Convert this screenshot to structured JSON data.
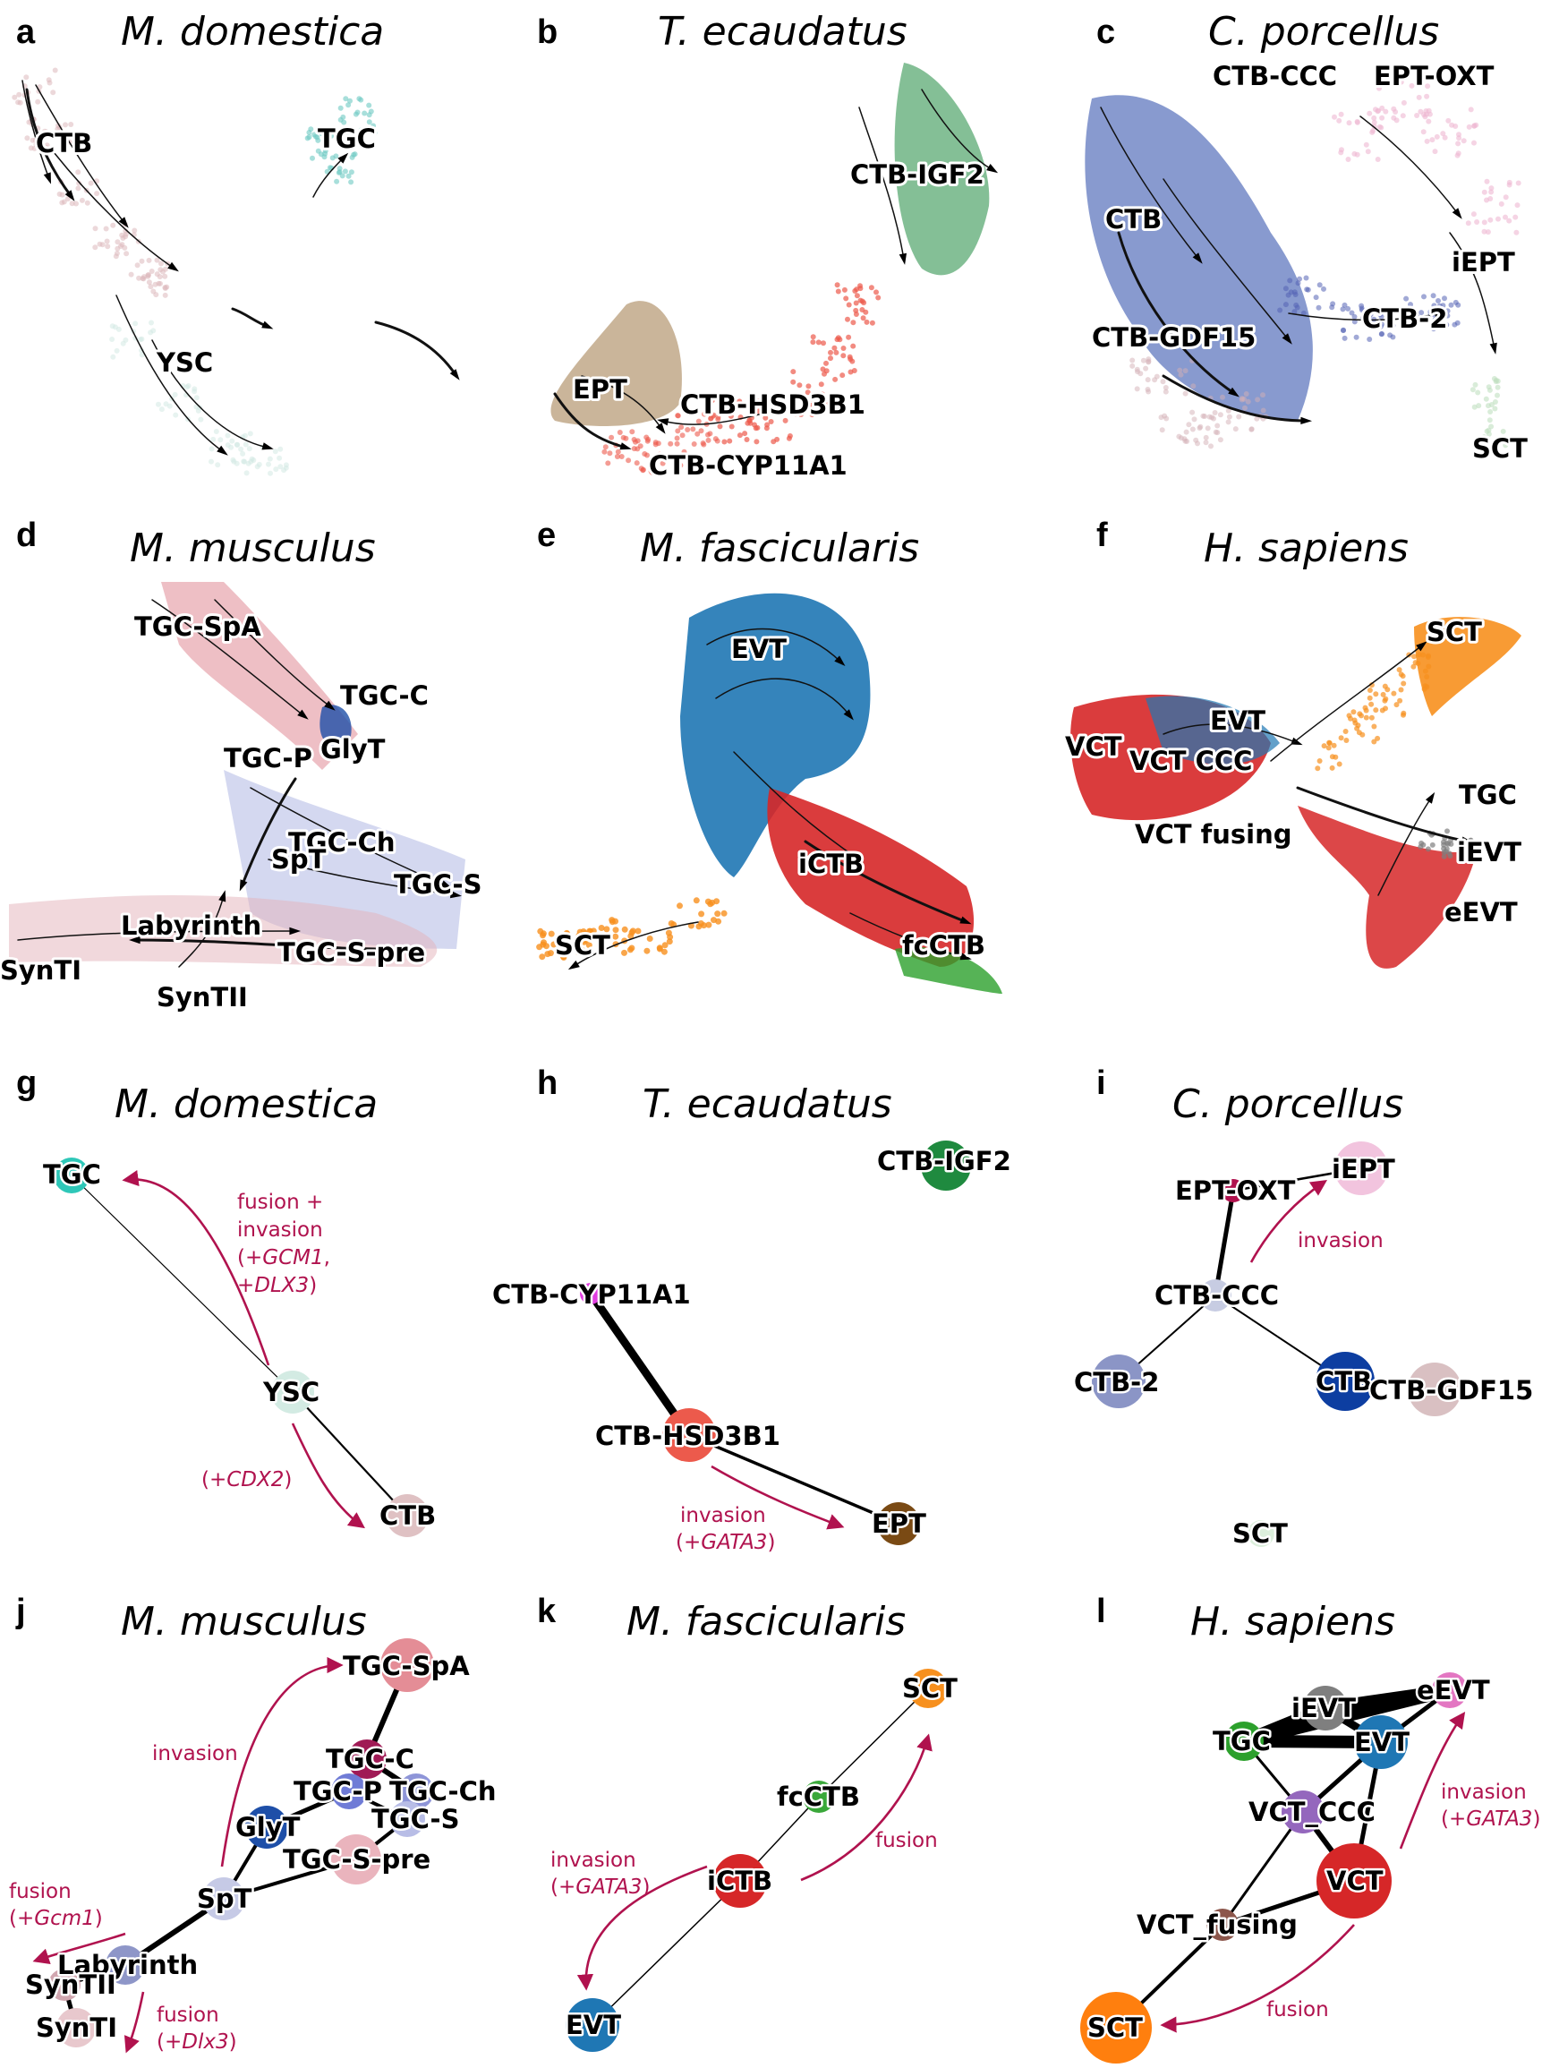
{
  "colors": {
    "annotation": "#b0124e",
    "edge": "#000000"
  },
  "panels": [
    {
      "id": "a",
      "letter": "a",
      "species": "M. domestica",
      "type": "umap",
      "labels": [
        "CTB",
        "TGC",
        "YSC"
      ]
    },
    {
      "id": "b",
      "letter": "b",
      "species": "T. ecaudatus",
      "type": "umap",
      "labels": [
        "CTB-IGF2",
        "EPT",
        "CTB-HSD3B1",
        "CTB-CYP11A1"
      ]
    },
    {
      "id": "c",
      "letter": "c",
      "species": "C. porcellus",
      "type": "umap",
      "labels": [
        "CTB-CCC",
        "EPT-OXT",
        "CTB",
        "iEPT",
        "CTB-GDF15",
        "CTB-2",
        "SCT"
      ]
    },
    {
      "id": "d",
      "letter": "d",
      "species": "M. musculus",
      "type": "umap",
      "labels": [
        "TGC-SpA",
        "TGC-C",
        "TGC-P",
        "GlyT",
        "TGC-Ch",
        "SpT",
        "TGC-S",
        "Labyrinth",
        "TGC-S-pre",
        "SynTI",
        "SynTII"
      ]
    },
    {
      "id": "e",
      "letter": "e",
      "species": "M. fascicularis",
      "type": "umap",
      "labels": [
        "EVT",
        "iCTB",
        "SCT",
        "fcCTB"
      ]
    },
    {
      "id": "f",
      "letter": "f",
      "species": "H. sapiens",
      "type": "umap",
      "labels": [
        "SCT",
        "EVT",
        "VCT",
        "VCT CCC",
        "TGC",
        "VCT fusing",
        "iEVT",
        "eEVT"
      ]
    },
    {
      "id": "g",
      "letter": "g",
      "species": "M. domestica",
      "type": "graph",
      "nodes": [
        {
          "id": "TGC",
          "label": "TGC",
          "color": "#2ec7b8"
        },
        {
          "id": "YSC",
          "label": "YSC",
          "color": "#d3ebe3"
        },
        {
          "id": "CTB",
          "label": "CTB",
          "color": "#dfc1c3"
        }
      ],
      "edges": [
        [
          "TGC",
          "YSC"
        ],
        [
          "YSC",
          "CTB"
        ]
      ],
      "annotations": [
        {
          "id": "g1",
          "lines": [
            "fusion +",
            "invasion",
            "(+GCM1,",
            "+DLX3)"
          ]
        },
        {
          "id": "g2",
          "lines": [
            "(+CDX2)"
          ]
        }
      ]
    },
    {
      "id": "h",
      "letter": "h",
      "species": "T. ecaudatus",
      "type": "graph",
      "nodes": [
        {
          "id": "CTB-IGF2",
          "label": "CTB-IGF2",
          "color": "#1f8a3f"
        },
        {
          "id": "CTB-CYP11A1",
          "label": "CTB-CYP11A1",
          "color": "#e03ee0"
        },
        {
          "id": "CTB-HSD3B1",
          "label": "CTB-HSD3B1",
          "color": "#ec5a4c"
        },
        {
          "id": "EPT",
          "label": "EPT",
          "color": "#7a4a14"
        }
      ],
      "edges": [
        [
          "CTB-CYP11A1",
          "CTB-HSD3B1"
        ],
        [
          "CTB-HSD3B1",
          "EPT"
        ]
      ],
      "annotations": [
        {
          "id": "h1",
          "lines": [
            "invasion",
            "(+GATA3)"
          ]
        }
      ]
    },
    {
      "id": "i",
      "letter": "i",
      "species": "C. porcellus",
      "type": "graph",
      "nodes": [
        {
          "id": "EPT-OXT",
          "label": "EPT-OXT",
          "color": "#b0124e"
        },
        {
          "id": "iEPT",
          "label": "iEPT",
          "color": "#f2c4de"
        },
        {
          "id": "CTB-CCC",
          "label": "CTB-CCC",
          "color": "#c7cce2"
        },
        {
          "id": "CTB-2",
          "label": "CTB-2",
          "color": "#8b95c6"
        },
        {
          "id": "CTB",
          "label": "CTB",
          "color": "#0d3ea1"
        },
        {
          "id": "CTB-GDF15",
          "label": "CTB-GDF15",
          "color": "#d9c0c2"
        },
        {
          "id": "SCT",
          "label": "SCT",
          "color": "#dcefdc"
        }
      ],
      "edges": [
        [
          "EPT-OXT",
          "iEPT"
        ],
        [
          "EPT-OXT",
          "CTB-CCC"
        ],
        [
          "CTB-CCC",
          "CTB-2"
        ],
        [
          "CTB-CCC",
          "CTB"
        ]
      ],
      "annotations": [
        {
          "id": "i1",
          "lines": [
            "invasion"
          ]
        }
      ]
    },
    {
      "id": "j",
      "letter": "j",
      "species": "M. musculus",
      "type": "graph",
      "nodes": [
        {
          "id": "TGC-SpA",
          "label": "TGC-SpA",
          "color": "#e48d96"
        },
        {
          "id": "TGC-C",
          "label": "TGC-C",
          "color": "#a01a55"
        },
        {
          "id": "TGC-P",
          "label": "TGC-P",
          "color": "#6f7bd6"
        },
        {
          "id": "TGC-Ch",
          "label": "TGC-Ch",
          "color": "#8e95d8"
        },
        {
          "id": "TGC-S",
          "label": "TGC-S",
          "color": "#b8bde6"
        },
        {
          "id": "GlyT",
          "label": "GlyT",
          "color": "#1e4fa8"
        },
        {
          "id": "TGC-S-pre",
          "label": "TGC-S-pre",
          "color": "#eab4bd"
        },
        {
          "id": "SpT",
          "label": "SpT",
          "color": "#c6cae6"
        },
        {
          "id": "Labyrinth",
          "label": "Labyrinth",
          "color": "#8e96c8"
        },
        {
          "id": "SynTII",
          "label": "SynTII",
          "color": "#d1a7b0"
        },
        {
          "id": "SynTI",
          "label": "SynTI",
          "color": "#e8c8cd"
        }
      ],
      "edges": [
        [
          "TGC-SpA",
          "TGC-C"
        ],
        [
          "TGC-C",
          "TGC-P"
        ],
        [
          "TGC-C",
          "TGC-Ch"
        ],
        [
          "TGC-P",
          "GlyT"
        ],
        [
          "TGC-P",
          "TGC-S"
        ],
        [
          "TGC-Ch",
          "TGC-S"
        ],
        [
          "TGC-S",
          "TGC-S-pre"
        ],
        [
          "GlyT",
          "SpT"
        ],
        [
          "SpT",
          "TGC-S-pre"
        ],
        [
          "SpT",
          "Labyrinth"
        ],
        [
          "Labyrinth",
          "SynTII"
        ],
        [
          "SynTII",
          "SynTI"
        ]
      ],
      "annotations": [
        {
          "id": "j1",
          "lines": [
            "invasion"
          ]
        },
        {
          "id": "j2",
          "lines": [
            "fusion",
            "(+Gcm1)"
          ]
        },
        {
          "id": "j3",
          "lines": [
            "fusion",
            "(+Dlx3)"
          ]
        }
      ]
    },
    {
      "id": "k",
      "letter": "k",
      "species": "M. fascicularis",
      "type": "graph",
      "nodes": [
        {
          "id": "SCT",
          "label": "SCT",
          "color": "#f7901e"
        },
        {
          "id": "fcCTB",
          "label": "fcCTB",
          "color": "#3aa83a"
        },
        {
          "id": "iCTB",
          "label": "iCTB",
          "color": "#d62728"
        },
        {
          "id": "EVT",
          "label": "EVT",
          "color": "#1f77b4"
        }
      ],
      "edges": [
        [
          "SCT",
          "fcCTB"
        ],
        [
          "fcCTB",
          "iCTB"
        ],
        [
          "iCTB",
          "EVT"
        ]
      ],
      "annotations": [
        {
          "id": "k1",
          "lines": [
            "invasion",
            "(+GATA3)"
          ]
        },
        {
          "id": "k2",
          "lines": [
            "fusion"
          ]
        }
      ]
    },
    {
      "id": "l",
      "letter": "l",
      "species": "H. sapiens",
      "type": "graph",
      "nodes": [
        {
          "id": "iEVT",
          "label": "iEVT",
          "color": "#7f7f7f"
        },
        {
          "id": "eEVT",
          "label": "eEVT",
          "color": "#e377c2"
        },
        {
          "id": "TGC",
          "label": "TGC",
          "color": "#2ca02c"
        },
        {
          "id": "EVT",
          "label": "EVT",
          "color": "#1f77b4"
        },
        {
          "id": "VCT_CCC",
          "label": "VCT_CCC",
          "color": "#9467bd"
        },
        {
          "id": "VCT",
          "label": "VCT",
          "color": "#d62728"
        },
        {
          "id": "VCT_fusing",
          "label": "VCT_fusing",
          "color": "#8c564b"
        },
        {
          "id": "SCT",
          "label": "SCT",
          "color": "#ff7f0e"
        }
      ],
      "edges": [
        [
          "iEVT",
          "eEVT"
        ],
        [
          "iEVT",
          "TGC"
        ],
        [
          "iEVT",
          "EVT"
        ],
        [
          "TGC",
          "eEVT"
        ],
        [
          "TGC",
          "EVT"
        ],
        [
          "EVT",
          "eEVT"
        ],
        [
          "TGC",
          "VCT_CCC"
        ],
        [
          "EVT",
          "VCT_CCC"
        ],
        [
          "VCT_CCC",
          "VCT"
        ],
        [
          "VCT_CCC",
          "VCT_fusing"
        ],
        [
          "VCT",
          "VCT_fusing"
        ],
        [
          "VCT",
          "EVT"
        ],
        [
          "VCT_fusing",
          "SCT"
        ]
      ],
      "annotations": [
        {
          "id": "l1",
          "lines": [
            "invasion",
            "(+GATA3)"
          ]
        },
        {
          "id": "l2",
          "lines": [
            "fusion"
          ]
        }
      ]
    }
  ]
}
